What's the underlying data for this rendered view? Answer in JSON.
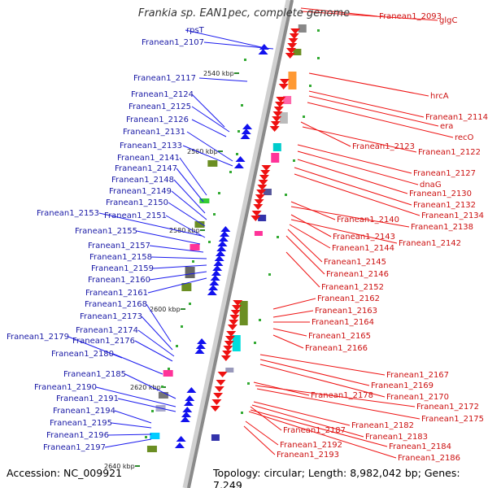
{
  "title": "Frankia sp. EAN1pec, complete genome",
  "footer": {
    "accession": "Accession: NC_009921",
    "topology": "Topology: circular; Length: 8,982,042 bp; Genes: 7,249"
  },
  "ticks": [
    "2540 kbp",
    "2560 kbp",
    "2580 kbp",
    "2600 kbp",
    "2620 kbp",
    "2640 kbp"
  ],
  "left_labels": [
    "rpsT",
    "Franean1_2107",
    "Franean1_2117",
    "Franean1_2124",
    "Franean1_2125",
    "Franean1_2126",
    "Franean1_2131",
    "Franean1_2133",
    "Franean1_2141",
    "Franean1_2147",
    "Franean1_2148",
    "Franean1_2149",
    "Franean1_2150",
    "Franean1_2153",
    "Franean1_2151",
    "Franean1_2155",
    "Franean1_2157",
    "Franean1_2158",
    "Franean1_2159",
    "Franean1_2160",
    "Franean1_2161",
    "Franean1_2168",
    "Franean1_2173",
    "Franean1_2174",
    "Franean1_2179",
    "Franean1_2176",
    "Franean1_2180",
    "Franean1_2185",
    "Franean1_2190",
    "Franean1_2191",
    "Franean1_2194",
    "Franean1_2195",
    "Franean1_2196",
    "Franean1_2197"
  ],
  "right_labels": [
    "Franean1_2093",
    "glgC",
    "hrcA",
    "Franean1_2114",
    "era",
    "recO",
    "Franean1_2123",
    "Franean1_2122",
    "Franean1_2127",
    "dnaG",
    "Franean1_2130",
    "Franean1_2132",
    "Franean1_2134",
    "Franean1_2140",
    "Franean1_2138",
    "Franean1_2143",
    "Franean1_2142",
    "Franean1_2144",
    "Franean1_2145",
    "Franean1_2146",
    "Franean1_2152",
    "Franean1_2162",
    "Franean1_2163",
    "Franean1_2164",
    "Franean1_2165",
    "Franean1_2166",
    "Franean1_2167",
    "Franean1_2169",
    "Franean1_2170",
    "Franean1_2178",
    "Franean1_2172",
    "Franean1_2175",
    "Franean1_2182",
    "Franean1_2187",
    "Franean1_2183",
    "Franean1_2184",
    "Franean1_2192",
    "Franean1_2186",
    "Franean1_2193"
  ]
}
